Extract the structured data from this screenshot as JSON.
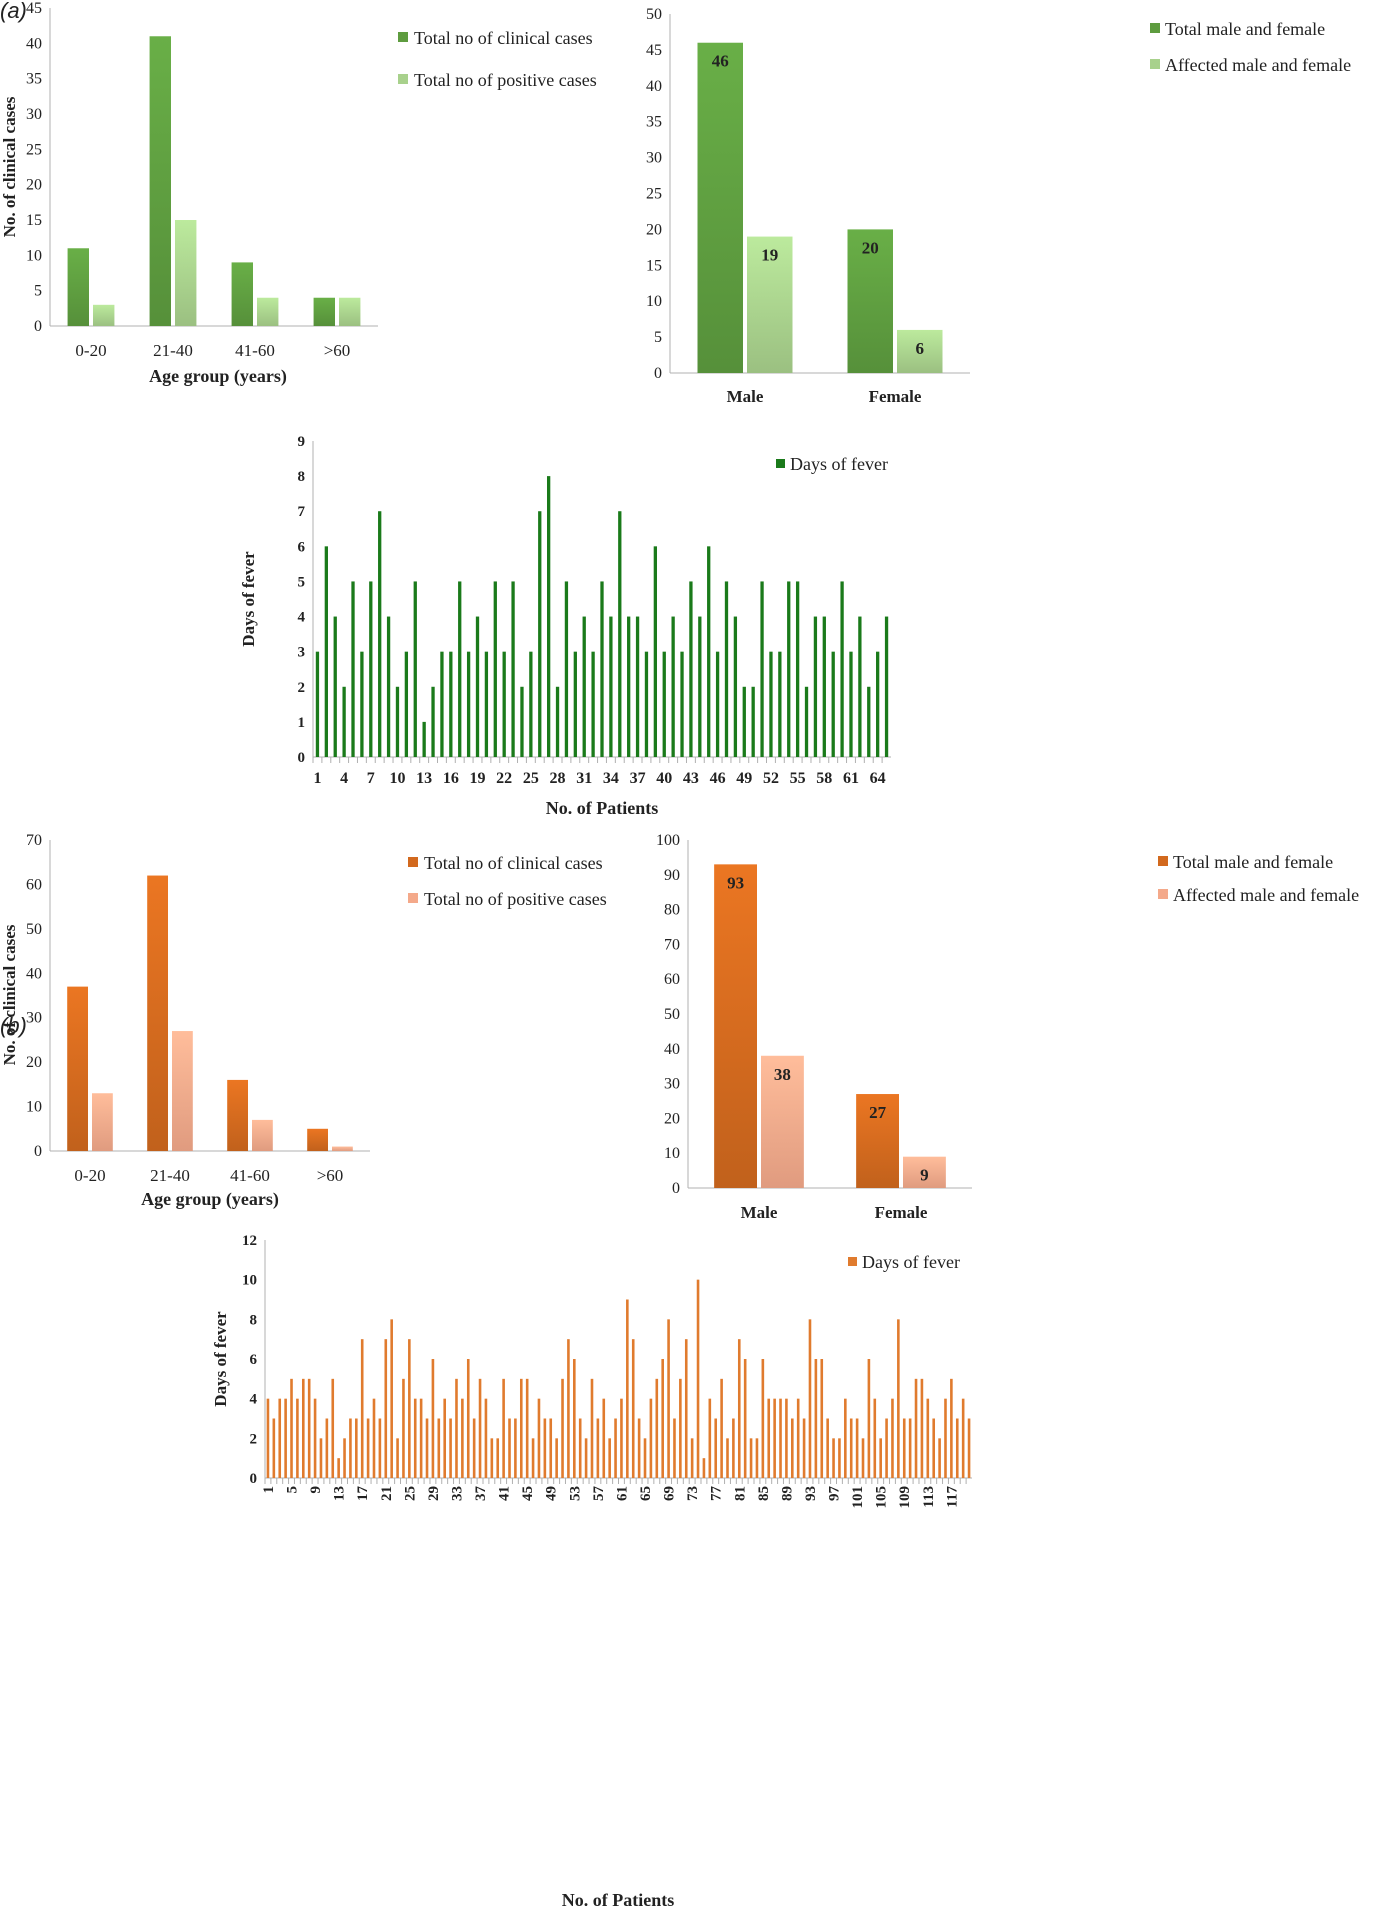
{
  "figure": {
    "panel_a_label": "(a)",
    "panel_b_label": "(b)"
  },
  "colors": {
    "green_dark": "#5e9c3f",
    "green_light": "#a8d18c",
    "green_fever": "#1a7a1a",
    "orange_dark": "#d2691e",
    "orange_light": "#f4a98a",
    "orange_fever": "#e07b2e",
    "axis": "#b0b0b0"
  },
  "chart_data": [
    {
      "id": "a_age",
      "type": "bar",
      "title": "",
      "xlabel": "Age group (years)",
      "ylabel": "No. of clinical cases",
      "ylim": [
        0,
        45
      ],
      "yticks": [
        0,
        5,
        10,
        15,
        20,
        25,
        30,
        35,
        40,
        45
      ],
      "categories": [
        "0-20",
        "21-40",
        "41-60",
        ">60"
      ],
      "series": [
        {
          "name": "Total no of clinical cases",
          "values": [
            11,
            41,
            9,
            4
          ],
          "color": "#5e9c3f"
        },
        {
          "name": "Total no of positive cases",
          "values": [
            3,
            15,
            4,
            4
          ],
          "color": "#a8d18c"
        }
      ],
      "legend": "top-right",
      "data_labels": false
    },
    {
      "id": "a_sex",
      "type": "bar",
      "title": "",
      "xlabel": "",
      "ylabel": "",
      "ylim": [
        0,
        50
      ],
      "yticks": [
        0,
        5,
        10,
        15,
        20,
        25,
        30,
        35,
        40,
        45,
        50
      ],
      "categories": [
        "Male",
        "Female"
      ],
      "series": [
        {
          "name": "Total male and female",
          "values": [
            46,
            20
          ],
          "color": "#5e9c3f"
        },
        {
          "name": "Affected male and female",
          "values": [
            19,
            6
          ],
          "color": "#a8d18c"
        }
      ],
      "legend": "top-right",
      "data_labels": true
    },
    {
      "id": "a_fever",
      "type": "bar",
      "title": "",
      "xlabel": "No. of Patients",
      "ylabel": "Days of fever",
      "ylim": [
        0,
        9
      ],
      "yticks": [
        0,
        1,
        2,
        3,
        4,
        5,
        6,
        7,
        8,
        9
      ],
      "x_tick_start": 1,
      "x_tick_step": 3,
      "series": [
        {
          "name": "Days of fever",
          "color": "#1a7a1a",
          "values": [
            3,
            6,
            4,
            2,
            5,
            3,
            5,
            7,
            4,
            2,
            3,
            5,
            1,
            2,
            3,
            3,
            5,
            3,
            4,
            3,
            5,
            3,
            5,
            2,
            3,
            7,
            8,
            2,
            5,
            3,
            4,
            3,
            5,
            4,
            7,
            4,
            4,
            3,
            6,
            3,
            4,
            3,
            5,
            4,
            6,
            3,
            5,
            4,
            2,
            2,
            5,
            3,
            3,
            5,
            5,
            2,
            4,
            4,
            3,
            5,
            3,
            4,
            2,
            3,
            4
          ]
        }
      ],
      "legend": "top-right",
      "data_labels": false
    },
    {
      "id": "b_age",
      "type": "bar",
      "title": "",
      "xlabel": "Age group (years)",
      "ylabel": "No. of clinical cases",
      "ylim": [
        0,
        70
      ],
      "yticks": [
        0,
        10,
        20,
        30,
        40,
        50,
        60,
        70
      ],
      "categories": [
        "0-20",
        "21-40",
        "41-60",
        ">60"
      ],
      "series": [
        {
          "name": "Total no of clinical cases",
          "values": [
            37,
            62,
            16,
            5
          ],
          "color": "#d2691e"
        },
        {
          "name": "Total no of positive cases",
          "values": [
            13,
            27,
            7,
            1
          ],
          "color": "#f4a98a"
        }
      ],
      "legend": "top-right",
      "data_labels": false
    },
    {
      "id": "b_sex",
      "type": "bar",
      "title": "",
      "xlabel": "",
      "ylabel": "",
      "ylim": [
        0,
        100
      ],
      "yticks": [
        0,
        10,
        20,
        30,
        40,
        50,
        60,
        70,
        80,
        90,
        100
      ],
      "categories": [
        "Male",
        "Female"
      ],
      "series": [
        {
          "name": "Total male and female",
          "values": [
            93,
            27
          ],
          "color": "#d2691e"
        },
        {
          "name": "Affected male and female",
          "values": [
            38,
            9
          ],
          "color": "#f4a98a"
        }
      ],
      "legend": "top-right",
      "data_labels": true
    },
    {
      "id": "b_fever",
      "type": "bar",
      "title": "",
      "xlabel": "No. of Patients",
      "ylabel": "Days of fever",
      "ylim": [
        0,
        12
      ],
      "yticks": [
        0,
        2,
        4,
        6,
        8,
        10,
        12
      ],
      "x_tick_start": 1,
      "x_tick_step": 4,
      "x_tick_rotated": true,
      "series": [
        {
          "name": "Days of fever",
          "color": "#e07b2e",
          "values": [
            4,
            3,
            4,
            4,
            5,
            4,
            5,
            5,
            4,
            2,
            3,
            5,
            1,
            2,
            3,
            3,
            7,
            3,
            4,
            3,
            7,
            8,
            2,
            5,
            7,
            4,
            4,
            3,
            6,
            3,
            4,
            3,
            5,
            4,
            6,
            3,
            5,
            4,
            2,
            2,
            5,
            3,
            3,
            5,
            5,
            2,
            4,
            3,
            3,
            2,
            5,
            7,
            6,
            3,
            2,
            5,
            3,
            4,
            2,
            3,
            4,
            9,
            7,
            3,
            2,
            4,
            5,
            6,
            8,
            3,
            5,
            7,
            2,
            10,
            1,
            4,
            3,
            5,
            2,
            3,
            7,
            6,
            2,
            2,
            6,
            4,
            4,
            4,
            4,
            3,
            4,
            3,
            8,
            6,
            6,
            3,
            2,
            2,
            4,
            3,
            3,
            2,
            6,
            4,
            2,
            3,
            4,
            8,
            3,
            3,
            5,
            5,
            4,
            3,
            2,
            4,
            5,
            3,
            4,
            3
          ]
        }
      ],
      "legend": "top-right",
      "data_labels": false
    }
  ]
}
